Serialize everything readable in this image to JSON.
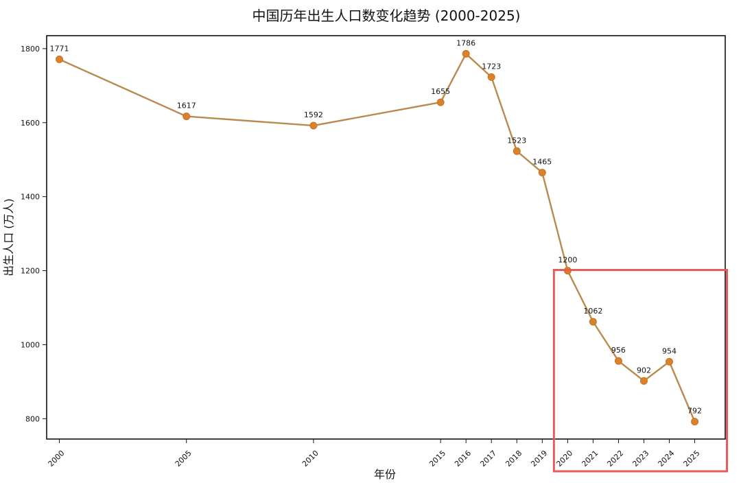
{
  "chart_data": {
    "type": "line",
    "title": "中国历年出生人口数变化趋势 (2000-2025)",
    "xlabel": "年份",
    "ylabel": "出生人口 (万人)",
    "x": [
      2000,
      2005,
      2010,
      2015,
      2016,
      2017,
      2018,
      2019,
      2020,
      2021,
      2022,
      2023,
      2024,
      2025
    ],
    "x_tick_labels": [
      "2000",
      "2005",
      "2010",
      "2015",
      "2016",
      "2017",
      "2018",
      "2019",
      "2020",
      "2021",
      "2022",
      "2023",
      "2024",
      "2025"
    ],
    "series": [
      {
        "values": [
          1771,
          1617,
          1592,
          1655,
          1786,
          1723,
          1523,
          1465,
          1200,
          1062,
          956,
          902,
          954,
          792
        ],
        "data_labels": [
          "1771",
          "1617",
          "1592",
          "1655",
          "1786",
          "1723",
          "1523",
          "1465",
          "1200",
          "1062",
          "956",
          "902",
          "954",
          "792"
        ],
        "color": "#b98a4d",
        "marker_color": "#d9822b"
      }
    ],
    "y_ticks": [
      800,
      1000,
      1200,
      1400,
      1600,
      1800
    ],
    "y_tick_labels": [
      "800",
      "1000",
      "1200",
      "1400",
      "1600",
      "1800"
    ],
    "xlim": [
      1999.5,
      2026.2
    ],
    "ylim": [
      745,
      1835
    ],
    "grid": false,
    "highlight": {
      "x_range": [
        2020,
        2025
      ],
      "color": "#e85a5a"
    }
  }
}
